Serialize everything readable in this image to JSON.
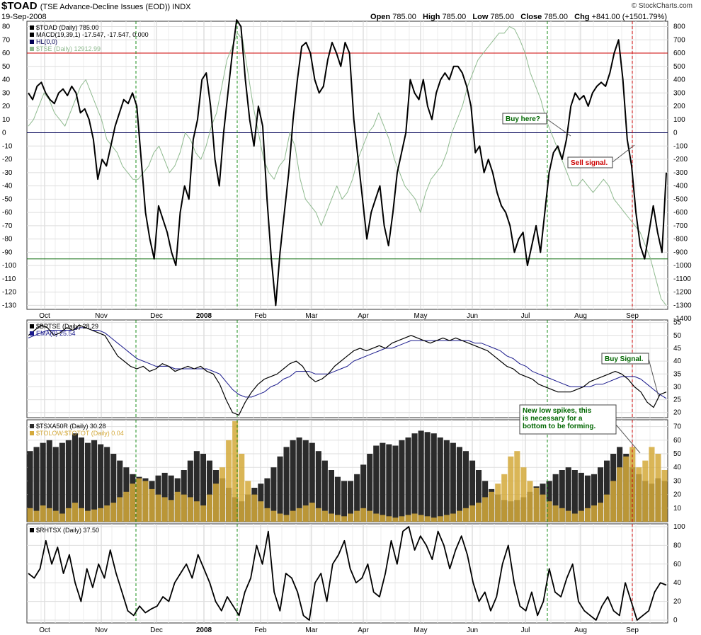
{
  "header": {
    "symbol": "$TOAD",
    "description": "(TSE Advance-Decline Issues (EOD)) INDX",
    "date": "19-Sep-2008",
    "brand": "© StockCharts.com",
    "open_label": "Open",
    "open": "785.00",
    "high_label": "High",
    "high": "785.00",
    "low_label": "Low",
    "low": "785.00",
    "close_label": "Close",
    "close": "785.00",
    "chg_label": "Chg",
    "chg": "+841.00 (+1501.79%)"
  },
  "x_axis": {
    "months": [
      "Oct",
      "Nov",
      "Dec",
      "2008",
      "Feb",
      "Mar",
      "Apr",
      "May",
      "Jun",
      "Jul",
      "Aug",
      "Sep"
    ]
  },
  "annotations": {
    "buy_here": "Buy here?",
    "sell_signal": "Sell signal.",
    "buy_signal": "Buy Signal.",
    "new_low_1": "New low spikes, this",
    "new_low_2": "is necessary for a",
    "new_low_3": "bottom to be forming."
  },
  "colors": {
    "macd": "#000000",
    "tse": "#8fba8f",
    "bptse": "#000000",
    "ema": "#1a1a8c",
    "tsxa50r": "#2b2b2b",
    "tolow": "#d4a93a",
    "rhtsx": "#000000",
    "red_line": "#cc0000",
    "green_line": "#006600",
    "zero_line": "#000055",
    "annot_green": "#006600",
    "annot_red": "#cc0000"
  },
  "chart_data": [
    {
      "type": "line",
      "panel": "main",
      "legend": [
        {
          "label": "$TOAD (Daily) 785.00",
          "color": "#000000"
        },
        {
          "label": "MACD(19,39,1) -17.547, -17.547, 0.000",
          "color": "#000000"
        },
        {
          "label": "HL(0,0)",
          "color": "#000055"
        },
        {
          "label": "$TSE (Daily) 12912.99",
          "color": "#8fba8f"
        }
      ],
      "left_axis": {
        "ticks": [
          80,
          70,
          60,
          50,
          40,
          30,
          20,
          10,
          0,
          -10,
          -20,
          -30,
          -40,
          -50,
          -60,
          -70,
          -80,
          -90,
          -100,
          -110,
          -120,
          -130
        ],
        "ylim": [
          -133,
          84
        ]
      },
      "right_axis": {
        "ticks": [
          800,
          700,
          600,
          500,
          400,
          300,
          200,
          100,
          0,
          -100,
          -200,
          -300,
          -400,
          -500,
          -600,
          -700,
          -800,
          -900,
          -1000,
          -1100,
          -1200,
          -1300,
          -1400
        ]
      },
      "hlines": [
        60,
        0,
        -95
      ],
      "series": [
        {
          "name": "MACD(19,39,1)",
          "values": [
            30,
            25,
            35,
            38,
            30,
            25,
            22,
            30,
            33,
            28,
            35,
            30,
            15,
            18,
            10,
            -5,
            -35,
            -20,
            -25,
            -10,
            5,
            15,
            25,
            22,
            30,
            20,
            -20,
            -60,
            -80,
            -95,
            -55,
            -65,
            -75,
            -90,
            -100,
            -60,
            -40,
            -50,
            -5,
            10,
            40,
            45,
            20,
            -20,
            -40,
            0,
            30,
            60,
            85,
            80,
            40,
            10,
            -10,
            20,
            5,
            -50,
            -95,
            -130,
            -90,
            -60,
            -30,
            10,
            40,
            65,
            68,
            60,
            40,
            30,
            35,
            55,
            68,
            60,
            50,
            68,
            60,
            10,
            -20,
            -50,
            -80,
            -60,
            -50,
            -40,
            -70,
            -85,
            -60,
            -30,
            -15,
            0,
            40,
            30,
            25,
            40,
            20,
            10,
            30,
            40,
            45,
            40,
            50,
            50,
            45,
            35,
            20,
            -15,
            -10,
            -30,
            -20,
            -30,
            -45,
            -55,
            -60,
            -70,
            -90,
            -80,
            -75,
            -100,
            -85,
            -70,
            -90,
            -60,
            -30,
            -15,
            -10,
            -20,
            -5,
            20,
            30,
            25,
            28,
            20,
            30,
            35,
            38,
            35,
            45,
            60,
            70,
            40,
            -5,
            -25,
            -60,
            -85,
            -95,
            -75,
            -55,
            -75,
            -90,
            -30
          ]
        },
        {
          "name": "$TSE",
          "values": [
            5,
            10,
            20,
            30,
            25,
            15,
            10,
            5,
            15,
            25,
            35,
            40,
            30,
            20,
            10,
            -5,
            -10,
            -15,
            -25,
            -30,
            -35,
            -35,
            -30,
            -25,
            -15,
            -10,
            -20,
            -30,
            -25,
            -15,
            0,
            -5,
            -15,
            -20,
            -10,
            5,
            15,
            35,
            55,
            65,
            75,
            70,
            45,
            20,
            0,
            -20,
            -30,
            -35,
            -25,
            -20,
            0,
            -10,
            -35,
            -50,
            -55,
            -60,
            -70,
            -60,
            -50,
            -40,
            -50,
            -45,
            -35,
            -20,
            -10,
            0,
            5,
            15,
            5,
            -5,
            -20,
            -30,
            -40,
            -45,
            -50,
            -60,
            -45,
            -35,
            -30,
            -25,
            -15,
            0,
            10,
            20,
            35,
            45,
            55,
            60,
            65,
            70,
            75,
            75,
            80,
            78,
            70,
            60,
            45,
            35,
            25,
            10,
            0,
            -10,
            -20,
            -30,
            -40,
            -40,
            -35,
            -40,
            -45,
            -40,
            -35,
            -40,
            -50,
            -55,
            -60,
            -65,
            -70,
            -75,
            -85,
            -95,
            -110,
            -125,
            -130
          ]
        }
      ]
    },
    {
      "type": "line",
      "panel": "bptse",
      "legend": [
        {
          "label": "$BPTSE (Daily) 28.29",
          "color": "#000000"
        },
        {
          "label": "EMA(9) 25.54",
          "color": "#1a1a8c"
        }
      ],
      "right_axis": {
        "ticks": [
          55,
          50,
          45,
          40,
          35,
          30,
          25,
          20
        ],
        "ylim": [
          18,
          56
        ]
      },
      "series": [
        {
          "name": "$BPTSE",
          "values": [
            50,
            52,
            54,
            53,
            50,
            51,
            53,
            52,
            54,
            53,
            52,
            51,
            50,
            46,
            42,
            40,
            38,
            37,
            38,
            36,
            37,
            39,
            38,
            36,
            37,
            38,
            37,
            38,
            36,
            35,
            31,
            25,
            20,
            19,
            24,
            28,
            31,
            33,
            34,
            35,
            37,
            39,
            40,
            38,
            34,
            32,
            33,
            35,
            38,
            40,
            42,
            44,
            45,
            44,
            45,
            46,
            45,
            47,
            48,
            49,
            50,
            49,
            48,
            47,
            48,
            49,
            48,
            49,
            48,
            47,
            46,
            45,
            44,
            42,
            40,
            38,
            37,
            35,
            34,
            33,
            31,
            30,
            29,
            28,
            28,
            28,
            29,
            30,
            32,
            33,
            34,
            35,
            36,
            35,
            33,
            30,
            28,
            24,
            22,
            27,
            28
          ]
        },
        {
          "name": "EMA(9)",
          "values": [
            49,
            50,
            51,
            52,
            52,
            52,
            52,
            52,
            53,
            53,
            52,
            52,
            51,
            49,
            47,
            45,
            43,
            41,
            40,
            39,
            38,
            38,
            38,
            37,
            37,
            37,
            37,
            37,
            37,
            36,
            35,
            32,
            29,
            27,
            26,
            26,
            27,
            28,
            30,
            31,
            33,
            34,
            36,
            36,
            36,
            35,
            35,
            35,
            36,
            37,
            38,
            40,
            41,
            42,
            43,
            44,
            45,
            45,
            46,
            47,
            48,
            48,
            48,
            48,
            48,
            48,
            48,
            48,
            48,
            48,
            47,
            47,
            46,
            45,
            44,
            42,
            41,
            39,
            38,
            36,
            35,
            34,
            33,
            32,
            31,
            30,
            30,
            30,
            30,
            31,
            31,
            32,
            33,
            34,
            34,
            34,
            33,
            31,
            29,
            27,
            25.5
          ]
        }
      ]
    },
    {
      "type": "bar",
      "panel": "tsxa50r",
      "legend": [
        {
          "label": "$TSXA50R (Daily) 30.28",
          "color": "#2b2b2b"
        },
        {
          "label": "$TOLOW:$TOTOT (Daily) 0.04",
          "color": "#d4a93a"
        }
      ],
      "right_axis": {
        "ticks": [
          70,
          60,
          50,
          40,
          30,
          20,
          10
        ],
        "ylim": [
          0,
          75
        ]
      },
      "series": [
        {
          "name": "$TSXA50R",
          "values": [
            52,
            55,
            58,
            60,
            55,
            58,
            60,
            65,
            62,
            58,
            60,
            57,
            55,
            50,
            45,
            40,
            35,
            33,
            32,
            30,
            34,
            36,
            34,
            32,
            38,
            45,
            52,
            50,
            45,
            38,
            32,
            25,
            18,
            15,
            20,
            25,
            28,
            32,
            40,
            48,
            55,
            60,
            62,
            60,
            58,
            52,
            45,
            38,
            33,
            30,
            30,
            35,
            42,
            50,
            56,
            58,
            57,
            56,
            60,
            62,
            65,
            67,
            66,
            65,
            62,
            60,
            58,
            55,
            52,
            45,
            38,
            30,
            24,
            20,
            16,
            15,
            16,
            18,
            22,
            26,
            28,
            30,
            35,
            38,
            40,
            38,
            36,
            34,
            35,
            40,
            45,
            50,
            55,
            50,
            40,
            35,
            30,
            28,
            32,
            30
          ]
        },
        {
          "name": "$TOLOW:$TOTOT",
          "values": [
            10,
            8,
            12,
            10,
            8,
            6,
            10,
            14,
            10,
            8,
            9,
            10,
            12,
            14,
            18,
            22,
            28,
            32,
            30,
            24,
            20,
            18,
            16,
            22,
            20,
            18,
            15,
            12,
            20,
            28,
            40,
            60,
            74,
            50,
            30,
            20,
            15,
            10,
            8,
            6,
            5,
            8,
            10,
            12,
            14,
            10,
            8,
            6,
            5,
            4,
            6,
            8,
            10,
            8,
            6,
            5,
            4,
            3,
            4,
            5,
            6,
            5,
            4,
            3,
            4,
            5,
            6,
            8,
            10,
            12,
            14,
            18,
            22,
            28,
            35,
            48,
            52,
            40,
            30,
            25,
            20,
            15,
            12,
            10,
            8,
            6,
            8,
            10,
            12,
            14,
            20,
            30,
            40,
            48,
            55,
            40,
            45,
            55,
            50,
            38
          ]
        }
      ]
    },
    {
      "type": "line",
      "panel": "rhtsx",
      "legend": [
        {
          "label": "$RHTSX (Daily) 37.50",
          "color": "#000000"
        }
      ],
      "right_axis": {
        "ticks": [
          100,
          80,
          60,
          40,
          20,
          0
        ],
        "ylim": [
          -3,
          103
        ]
      },
      "series": [
        {
          "name": "$RHTSX",
          "values": [
            50,
            45,
            55,
            85,
            60,
            78,
            50,
            70,
            40,
            20,
            55,
            35,
            60,
            45,
            75,
            50,
            30,
            10,
            5,
            15,
            8,
            12,
            15,
            25,
            20,
            40,
            50,
            60,
            45,
            70,
            55,
            40,
            20,
            10,
            25,
            15,
            5,
            30,
            45,
            80,
            60,
            95,
            30,
            10,
            50,
            45,
            30,
            5,
            0,
            40,
            50,
            20,
            60,
            70,
            85,
            55,
            40,
            45,
            60,
            30,
            25,
            50,
            85,
            60,
            95,
            100,
            75,
            90,
            80,
            65,
            95,
            80,
            55,
            75,
            90,
            70,
            40,
            20,
            30,
            10,
            25,
            60,
            80,
            40,
            15,
            10,
            30,
            5,
            20,
            55,
            30,
            25,
            45,
            60,
            20,
            10,
            5,
            0,
            15,
            25,
            10,
            5,
            40,
            20,
            0,
            5,
            10,
            30,
            40,
            37.5
          ]
        }
      ]
    }
  ]
}
